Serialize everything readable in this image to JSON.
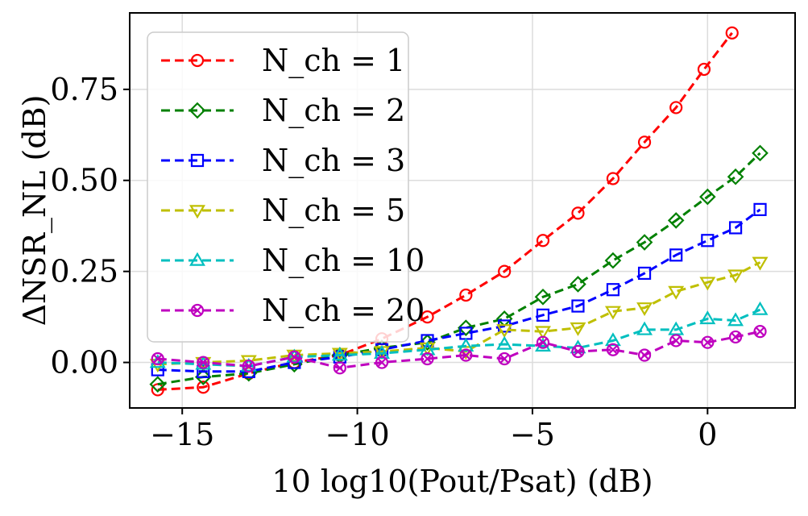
{
  "chart_data": {
    "type": "line",
    "title": "",
    "xlabel": "10 log10(Pout/Psat) (dB)",
    "ylabel": "ΔNSR_NL (dB)",
    "xlim": [
      -16.5,
      2.5
    ],
    "ylim": [
      -0.125,
      0.96
    ],
    "grid": true,
    "legend_position": "upper-left",
    "x_ticks": [
      {
        "value": -15,
        "label": "−15"
      },
      {
        "value": -10,
        "label": "−10"
      },
      {
        "value": -5,
        "label": "−5"
      },
      {
        "value": 0,
        "label": "0"
      }
    ],
    "y_ticks": [
      {
        "value": 0.0,
        "label": "0.00"
      },
      {
        "value": 0.25,
        "label": "0.25"
      },
      {
        "value": 0.5,
        "label": "0.50"
      },
      {
        "value": 0.75,
        "label": "0.75"
      }
    ],
    "series": [
      {
        "name": "N_ch = 1",
        "color": "#ff0000",
        "marker": "circle",
        "x": [
          -15.7,
          -14.4,
          -13.1,
          -11.8,
          -10.5,
          -9.3,
          -8.0,
          -6.9,
          -5.8,
          -4.7,
          -3.7,
          -2.7,
          -1.8,
          -0.9,
          -0.1,
          0.7
        ],
        "y": [
          -0.075,
          -0.068,
          -0.03,
          0.0,
          0.02,
          0.065,
          0.125,
          0.185,
          0.25,
          0.335,
          0.41,
          0.505,
          0.605,
          0.7,
          0.805,
          0.905
        ]
      },
      {
        "name": "N_ch = 2",
        "color": "#008000",
        "marker": "diamond",
        "x": [
          -15.7,
          -14.4,
          -13.1,
          -11.8,
          -10.5,
          -9.3,
          -8.0,
          -6.9,
          -5.8,
          -4.7,
          -3.7,
          -2.7,
          -1.8,
          -0.9,
          0.0,
          0.8,
          1.5
        ],
        "y": [
          -0.06,
          -0.04,
          -0.03,
          -0.005,
          0.02,
          0.04,
          0.055,
          0.095,
          0.12,
          0.18,
          0.215,
          0.28,
          0.33,
          0.39,
          0.455,
          0.51,
          0.575
        ]
      },
      {
        "name": "N_ch = 3",
        "color": "#0000ff",
        "marker": "square",
        "x": [
          -15.7,
          -14.4,
          -13.1,
          -11.8,
          -10.5,
          -9.3,
          -8.0,
          -6.9,
          -5.8,
          -4.7,
          -3.7,
          -2.7,
          -1.8,
          -0.9,
          0.0,
          0.8,
          1.5
        ],
        "y": [
          -0.02,
          -0.025,
          -0.025,
          0.0,
          0.015,
          0.035,
          0.06,
          0.08,
          0.1,
          0.13,
          0.155,
          0.2,
          0.245,
          0.295,
          0.335,
          0.37,
          0.42
        ]
      },
      {
        "name": "N_ch = 5",
        "color": "#bfbf00",
        "marker": "triangle-down",
        "x": [
          -15.7,
          -14.4,
          -13.1,
          -11.8,
          -10.5,
          -9.3,
          -8.0,
          -6.9,
          -5.8,
          -4.7,
          -3.7,
          -2.7,
          -1.8,
          -0.9,
          0.0,
          0.8,
          1.5
        ],
        "y": [
          -0.005,
          0.0,
          0.005,
          0.02,
          0.025,
          0.03,
          0.04,
          0.03,
          0.09,
          0.085,
          0.095,
          0.14,
          0.15,
          0.195,
          0.22,
          0.24,
          0.275
        ]
      },
      {
        "name": "N_ch = 10",
        "color": "#00bfbf",
        "marker": "triangle-up",
        "x": [
          -15.7,
          -14.4,
          -13.1,
          -11.8,
          -10.5,
          -9.3,
          -8.0,
          -6.9,
          -5.8,
          -4.7,
          -3.7,
          -2.7,
          -1.8,
          -0.9,
          0.0,
          0.8,
          1.5
        ],
        "y": [
          0.0,
          -0.005,
          -0.01,
          0.015,
          0.02,
          0.025,
          0.035,
          0.045,
          0.05,
          0.045,
          0.04,
          0.06,
          0.09,
          0.09,
          0.12,
          0.115,
          0.145
        ]
      },
      {
        "name": "N_ch = 20",
        "color": "#bf00bf",
        "marker": "x-circle",
        "x": [
          -15.7,
          -14.4,
          -13.1,
          -11.8,
          -10.5,
          -9.3,
          -8.0,
          -6.9,
          -5.8,
          -4.7,
          -3.7,
          -2.7,
          -1.8,
          -0.9,
          0.0,
          0.8,
          1.5
        ],
        "y": [
          0.01,
          0.0,
          -0.01,
          0.015,
          -0.015,
          0.0,
          0.01,
          0.02,
          0.01,
          0.055,
          0.03,
          0.035,
          0.02,
          0.06,
          0.055,
          0.07,
          0.085
        ]
      }
    ]
  }
}
